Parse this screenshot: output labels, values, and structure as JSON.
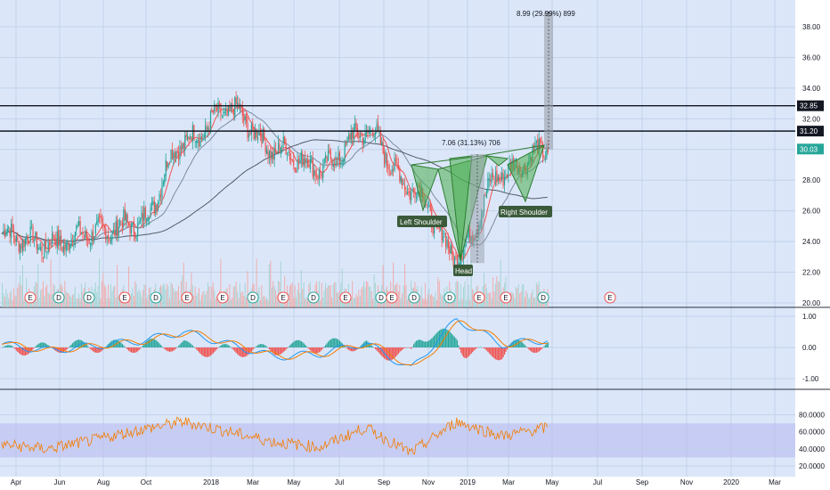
{
  "colors": {
    "background": "#dbe7f9",
    "grid": "#c3d2ea",
    "axis_bg": "#ffffff",
    "candle_up": "#26a69a",
    "candle_down": "#ef5350",
    "ma_short": "#ef5350",
    "ma_mid": "#7e8aa0",
    "ma_long": "#555a66",
    "pattern_fill": "#4caf50",
    "pattern_stroke": "#2e7d32",
    "label_bg": "#3a5a3a",
    "macd_line": "#2196f3",
    "signal_line": "#f57c00",
    "rsi_line": "#f57c00",
    "rsi_band": "#b6b7f0",
    "last_price_bg": "#26a69a",
    "level_bg": "#131722",
    "earnings_badge": "#ef5350",
    "dividend_badge": "#26a69a"
  },
  "time_axis": {
    "labels": [
      "Apr",
      "Jun",
      "Aug",
      "Oct",
      "2018",
      "Mar",
      "May",
      "Jul",
      "Sep",
      "Nov",
      "2019",
      "Mar",
      "May",
      "Jul",
      "Sep",
      "Nov",
      "2020",
      "Mar"
    ]
  },
  "price_panel": {
    "tick_labels": [
      "38.00",
      "36.00",
      "34.00",
      "32.00",
      "28.00",
      "26.00",
      "24.00",
      "22.00",
      "20.00"
    ],
    "level_labels": [
      "32.85",
      "31.20"
    ],
    "last_price_label": "30.03",
    "annotations": {
      "measure_top": "8.99 (29.99%) 899",
      "measure_mid": "7.06 (31.13%) 706",
      "left_shoulder": "Left Shoulder",
      "head": "Head",
      "right_shoulder": "Right Shoulder"
    },
    "event_badges": {
      "earnings": "E",
      "dividend": "D",
      "sequence": [
        "E",
        "D",
        "D",
        "E",
        "D",
        "E",
        "E",
        "D",
        "E",
        "D",
        "E",
        "D",
        "E",
        "D",
        "D",
        "E",
        "E",
        "D",
        "E",
        "E",
        "E"
      ]
    }
  },
  "macd_panel": {
    "tick_labels": [
      "1.00",
      "0.00",
      "-1.00"
    ]
  },
  "rsi_panel": {
    "tick_labels": [
      "80.0000",
      "60.0000",
      "40.0000",
      "20.0000"
    ]
  },
  "chart_data": [
    {
      "type": "candlestick",
      "title": "",
      "x": [
        "Apr 2017",
        "Jun 2017",
        "Aug 2017",
        "Oct 2017",
        "Jan 2018",
        "Mar 2018",
        "May 2018",
        "Jul 2018",
        "Sep 2018",
        "Nov 2018",
        "Jan 2019",
        "Mar 2019",
        "Apr 2019"
      ],
      "series": [
        {
          "name": "",
          "values": [
            24.5,
            23.8,
            24.6,
            25.2,
            30.5,
            32.6,
            30.0,
            28.8,
            31.2,
            27.5,
            23.2,
            28.5,
            30.03
          ]
        }
      ],
      "horizontal_levels": [
        32.85,
        31.2
      ],
      "ylim": [
        19.7,
        39.2
      ],
      "grid": true
    },
    {
      "type": "line",
      "title": "",
      "x": [
        "Apr 2017",
        "Jun 2017",
        "Aug 2017",
        "Oct 2017",
        "Jan 2018",
        "Mar 2018",
        "May 2018",
        "Jul 2018",
        "Sep 2018",
        "Nov 2018",
        "Jan 2019",
        "Mar 2019",
        "Apr 2019"
      ],
      "series": [
        {
          "name": "",
          "values": [
            0.1,
            -0.1,
            0.05,
            0.2,
            0.5,
            0.1,
            -0.3,
            -0.2,
            0.15,
            -0.7,
            0.9,
            0.1,
            0.25
          ]
        }
      ],
      "ylim": [
        -1.4,
        1.6
      ],
      "grid": true
    },
    {
      "type": "line",
      "title": "",
      "x": [
        "Apr 2017",
        "Jun 2017",
        "Aug 2017",
        "Oct 2017",
        "Jan 2018",
        "Mar 2018",
        "May 2018",
        "Jul 2018",
        "Sep 2018",
        "Nov 2018",
        "Jan 2019",
        "Mar 2019",
        "Apr 2019"
      ],
      "series": [
        {
          "name": "",
          "values": [
            45,
            40,
            50,
            62,
            72,
            60,
            48,
            42,
            65,
            35,
            72,
            55,
            65
          ]
        }
      ],
      "ylim": [
        14,
        88
      ],
      "grid": true
    }
  ]
}
